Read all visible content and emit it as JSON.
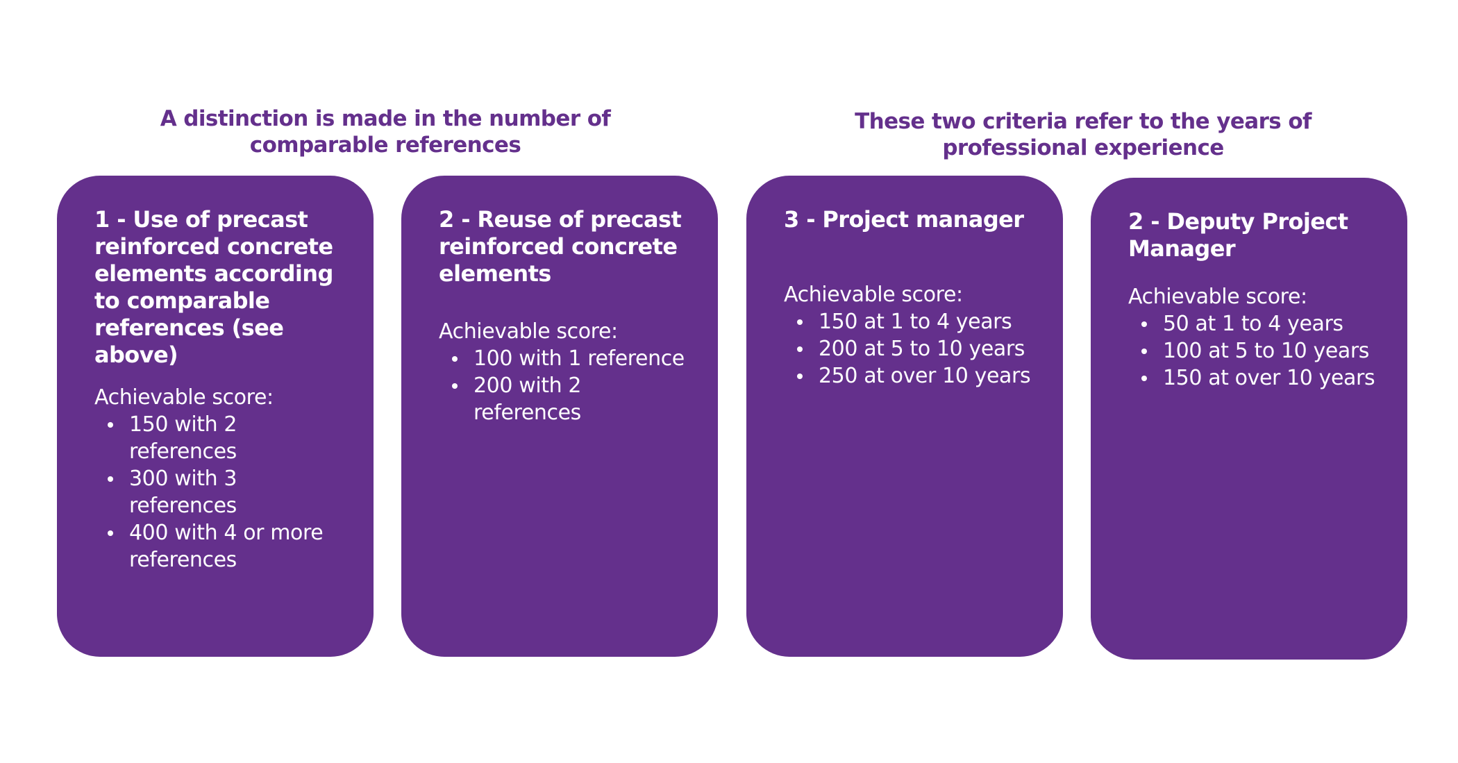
{
  "headings": {
    "left": "A distinction is made in the number of comparable references",
    "right": "These two criteria refer to the years of professional experience"
  },
  "colors": {
    "card_background": "#64308c",
    "heading_text": "#64308c",
    "card_text": "#ffffff"
  },
  "cards": [
    {
      "title": "1 - Use of precast reinforced concrete elements according to comparable references (see above)",
      "score_label": "Achievable score:",
      "items": [
        "150 with 2 references",
        "300 with 3 references",
        "400 with 4 or more references"
      ]
    },
    {
      "title": "2 - Reuse of precast reinforced concrete elements",
      "score_label": "Achievable score:",
      "items": [
        "100 with 1 reference",
        "200 with 2 references"
      ]
    },
    {
      "title": "3 - Project manager",
      "score_label": "Achievable score:",
      "items": [
        "150 at 1 to 4 years",
        "200 at 5 to 10 years",
        "250 at over 10 years"
      ]
    },
    {
      "title": "2 - Deputy Project Manager",
      "score_label": "Achievable score:",
      "items": [
        "50 at 1 to 4 years",
        "100 at 5 to 10 years",
        "150 at over 10 years"
      ]
    }
  ]
}
